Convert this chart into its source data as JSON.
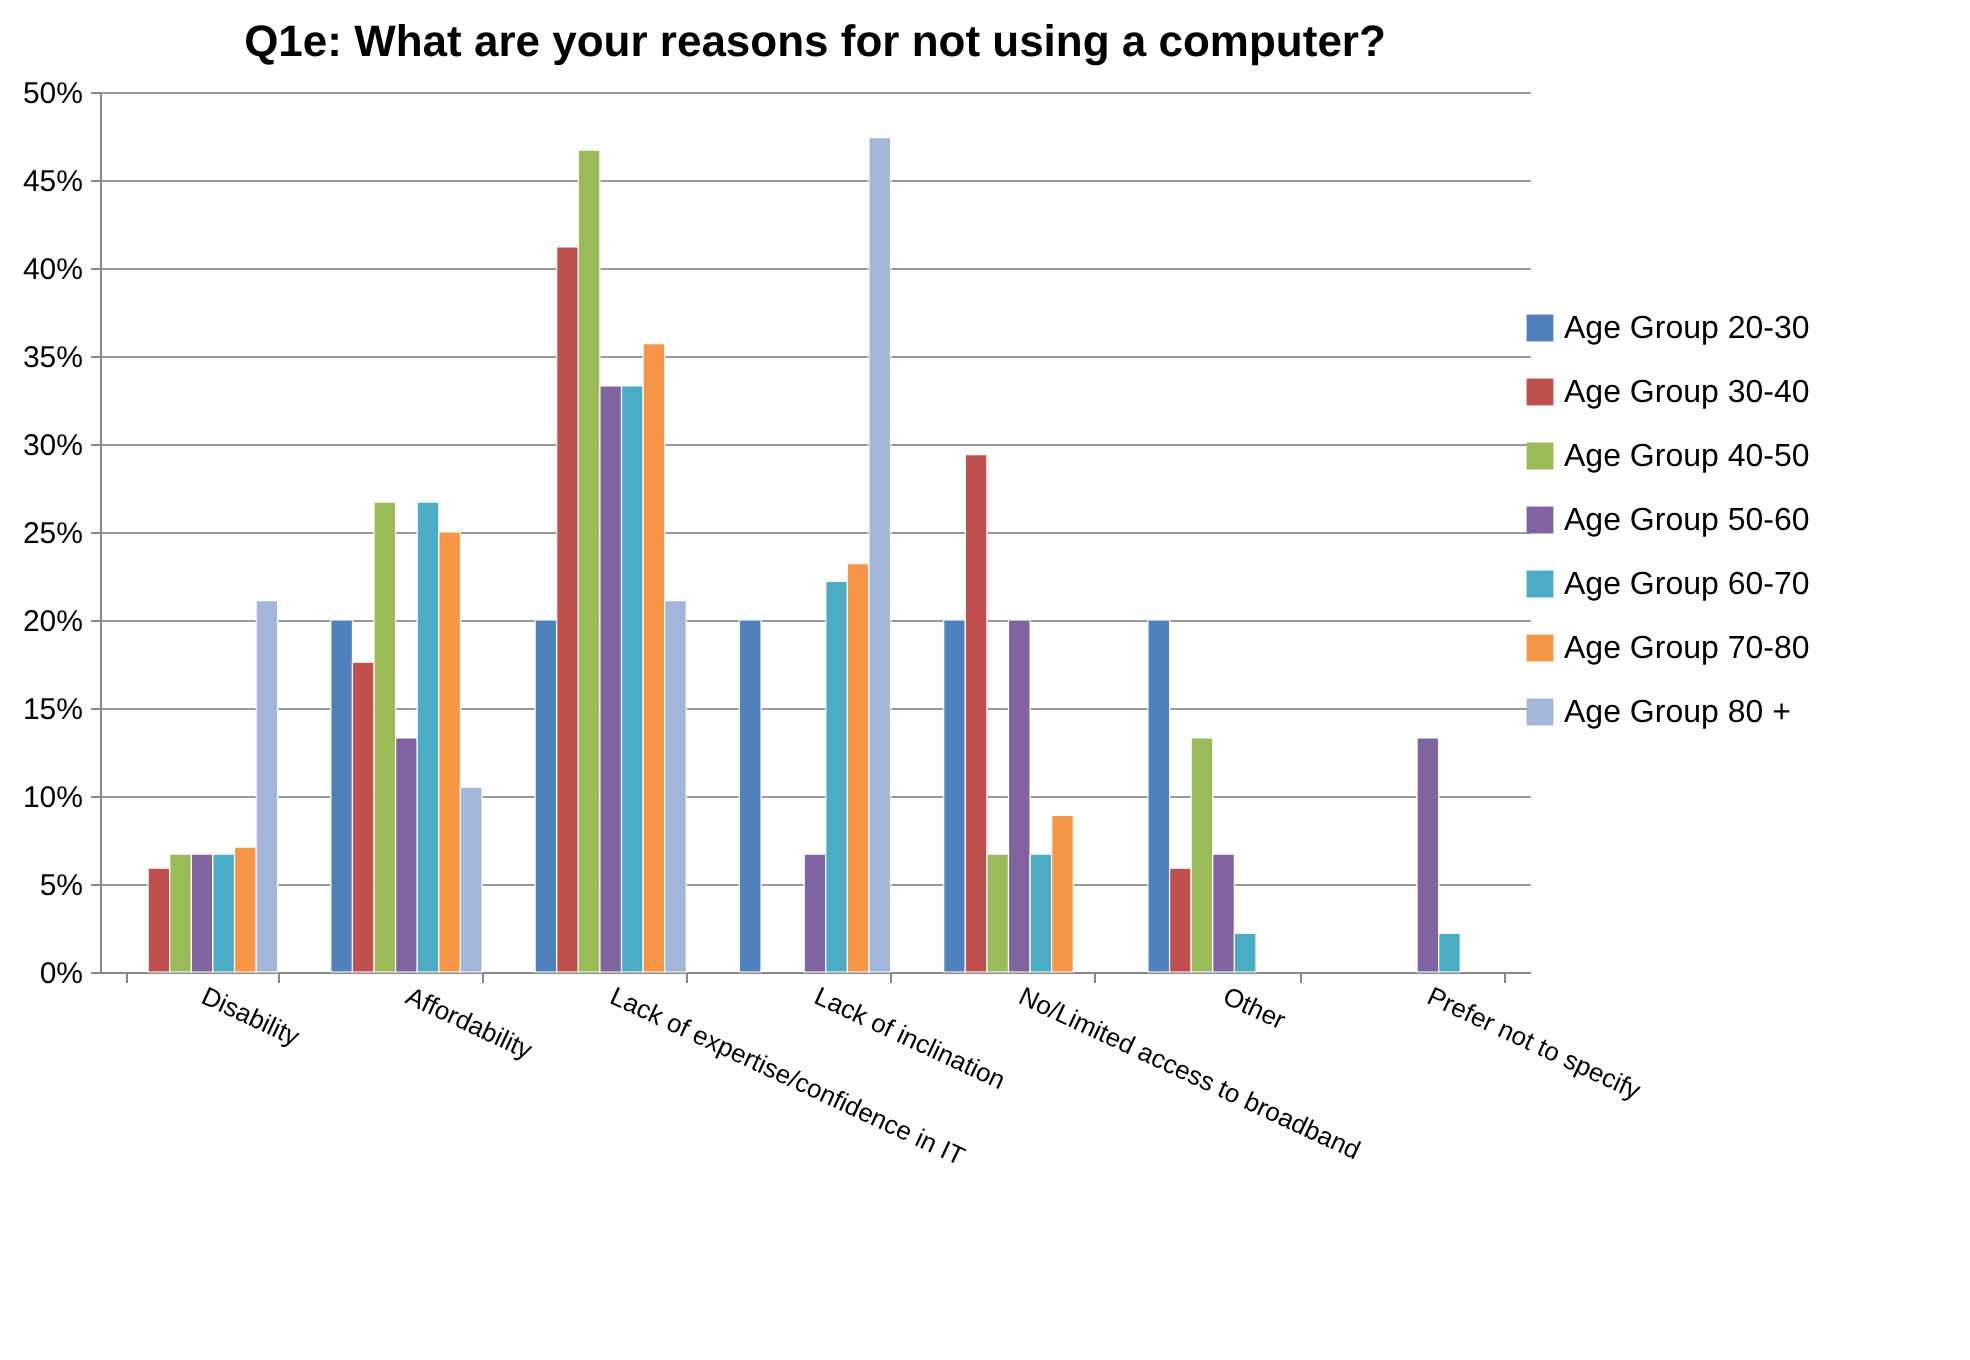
{
  "chart_data": {
    "type": "bar",
    "title": "Q1e: What are your reasons for not using a computer?",
    "categories": [
      "Disability",
      "Affordability",
      "Lack of expertise/confidence in IT",
      "Lack of inclination",
      "No/Limited access to broadband",
      "Other",
      "Prefer not to specify"
    ],
    "series": [
      {
        "name": "Age Group 20-30",
        "color": "#4f81bd",
        "values": [
          null,
          20,
          20,
          20,
          20,
          20,
          null
        ]
      },
      {
        "name": "Age Group 30-40",
        "color": "#c0504d",
        "values": [
          5.9,
          17.6,
          41.2,
          null,
          29.4,
          5.9,
          null
        ]
      },
      {
        "name": "Age Group 40-50",
        "color": "#9bbb59",
        "values": [
          6.7,
          26.7,
          46.7,
          null,
          6.7,
          13.3,
          null
        ]
      },
      {
        "name": "Age Group 50-60",
        "color": "#8064a2",
        "values": [
          6.7,
          13.3,
          33.3,
          6.7,
          20,
          6.7,
          13.3
        ]
      },
      {
        "name": "Age Group 60-70",
        "color": "#4bacc6",
        "values": [
          6.7,
          26.7,
          33.3,
          22.2,
          6.7,
          2.2,
          2.2
        ]
      },
      {
        "name": "Age Group 70-80",
        "color": "#f79646",
        "values": [
          7.1,
          25,
          35.7,
          23.2,
          8.9,
          null,
          null
        ]
      },
      {
        "name": "Age Group 80 +",
        "color": "#a2b6da",
        "values": [
          21.1,
          10.5,
          21.1,
          47.4,
          null,
          null,
          null
        ]
      }
    ],
    "ylim": [
      0,
      50
    ],
    "yticks": [
      {
        "value": 0,
        "label": "0%"
      },
      {
        "value": 5,
        "label": "5%"
      },
      {
        "value": 10,
        "label": "10%"
      },
      {
        "value": 15,
        "label": "15%"
      },
      {
        "value": 20,
        "label": "20%"
      },
      {
        "value": 25,
        "label": "25%"
      },
      {
        "value": 30,
        "label": "30%"
      },
      {
        "value": 35,
        "label": "35%"
      },
      {
        "value": 40,
        "label": "40%"
      },
      {
        "value": 45,
        "label": "45%"
      },
      {
        "value": 50,
        "label": "50%"
      }
    ],
    "grid": "y",
    "legend": "right"
  }
}
